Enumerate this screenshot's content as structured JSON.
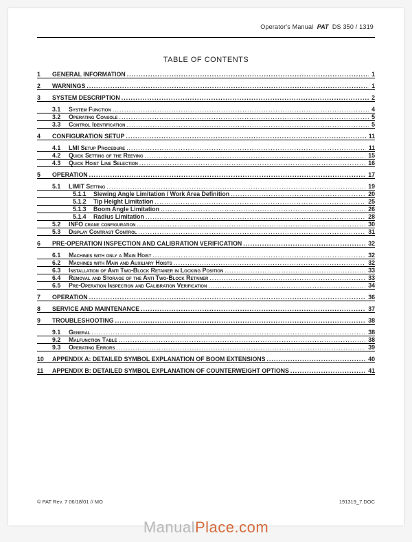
{
  "header": {
    "manual": "Operator's Manual",
    "brand": "PAT",
    "model": "DS 350 / 1319"
  },
  "toc_title": "TABLE OF CONTENTS",
  "entries": [
    {
      "type": "sec",
      "num": "1",
      "label": "GENERAL INFORMATION",
      "page": "1",
      "padTop": false
    },
    {
      "type": "gap"
    },
    {
      "type": "sec",
      "num": "2",
      "label": "WARNINGS",
      "page": "1"
    },
    {
      "type": "gap"
    },
    {
      "type": "sec",
      "num": "3",
      "label": "SYSTEM DESCRIPTION",
      "page": "2"
    },
    {
      "type": "sub",
      "num": "3.1",
      "label": "System Function",
      "page": "4",
      "padTop": true
    },
    {
      "type": "sub",
      "num": "3.2",
      "label": "Operating Console",
      "page": "5"
    },
    {
      "type": "sub",
      "num": "3.3",
      "label": "Control Identification",
      "page": "5"
    },
    {
      "type": "gap"
    },
    {
      "type": "sec",
      "num": "4",
      "label": "CONFIGURATION SETUP",
      "page": "11"
    },
    {
      "type": "sub",
      "num": "4.1",
      "label": "LMI Setup Procedure",
      "page": "11",
      "padTop": true
    },
    {
      "type": "sub",
      "num": "4.2",
      "label": "Quick Setting of the Reeving",
      "page": "15"
    },
    {
      "type": "sub",
      "num": "4.3",
      "label": "Quick Hoist Line Selection",
      "page": "16"
    },
    {
      "type": "sec",
      "num": "5",
      "label": "OPERATION",
      "page": "17",
      "padTop": true
    },
    {
      "type": "sub",
      "num": "5.1",
      "label": "LIMIT Setting",
      "page": "19",
      "padTop": true
    },
    {
      "type": "subsub",
      "num": "5.1.1",
      "label": "Slewing Angle Limitation / Work Area Definition",
      "page": "20"
    },
    {
      "type": "subsub",
      "num": "5.1.2",
      "label": "Tip Height Limitation",
      "page": "25"
    },
    {
      "type": "subsub",
      "num": "5.1.3",
      "label": "Boom Angle Limitation",
      "page": "26"
    },
    {
      "type": "subsub",
      "num": "5.1.4",
      "label": "Radius Limitation",
      "page": "28"
    },
    {
      "type": "sub",
      "num": "5.2",
      "label": "INFO crane configuration",
      "page": "30"
    },
    {
      "type": "sub",
      "num": "5.3",
      "label": "Display Contrast Control",
      "page": "31"
    },
    {
      "type": "gap"
    },
    {
      "type": "sec",
      "num": "6",
      "label": "PRE-OPERATION INSPECTION AND CALIBRATION VERIFICATION",
      "page": "32"
    },
    {
      "type": "sub",
      "num": "6.1",
      "label": "Machines with only a Main Hoist",
      "page": "32",
      "padTop": true
    },
    {
      "type": "sub",
      "num": "6.2",
      "label": "Machines with Main and Auxiliary Hoists",
      "page": "32"
    },
    {
      "type": "sub",
      "num": "6.3",
      "label": "Installation of Anti Two-Block Retainer in Locking Position",
      "page": "33"
    },
    {
      "type": "sub",
      "num": "6.4",
      "label": "Removal and Storage of the Anti Two-Block Retainer",
      "page": "33"
    },
    {
      "type": "sub",
      "num": "6.5",
      "label": "Pre-Operation Inspection and Calibration Verification",
      "page": "34"
    },
    {
      "type": "gap"
    },
    {
      "type": "sec",
      "num": "7",
      "label": "OPERATION",
      "page": "36"
    },
    {
      "type": "gap"
    },
    {
      "type": "sec",
      "num": "8",
      "label": "SERVICE AND MAINTENANCE",
      "page": "37"
    },
    {
      "type": "gap"
    },
    {
      "type": "sec",
      "num": "9",
      "label": "TROUBLESHOOTING",
      "page": "38"
    },
    {
      "type": "sub",
      "num": "9.1",
      "label": "General",
      "page": "38",
      "padTop": true
    },
    {
      "type": "sub",
      "num": "9.2",
      "label": "Malfunction Table",
      "page": "38"
    },
    {
      "type": "sub",
      "num": "9.3",
      "label": "Operating Errors",
      "page": "39"
    },
    {
      "type": "gap"
    },
    {
      "type": "sec",
      "num": "10",
      "label": "APPENDIX A:  DETAILED SYMBOL EXPLANATION OF BOOM EXTENSIONS",
      "page": "40"
    },
    {
      "type": "gap"
    },
    {
      "type": "sec",
      "num": "11",
      "label": "APPENDIX B: DETAILED SYMBOL EXPLANATION OF COUNTERWEIGHT OPTIONS",
      "page": "41"
    }
  ],
  "footer": {
    "left": "© PAT Rev. 7 06/18/01 // MO",
    "right": "191319_7.DOC"
  },
  "watermark": {
    "part1": "Manual",
    "part2": "Place.com"
  }
}
